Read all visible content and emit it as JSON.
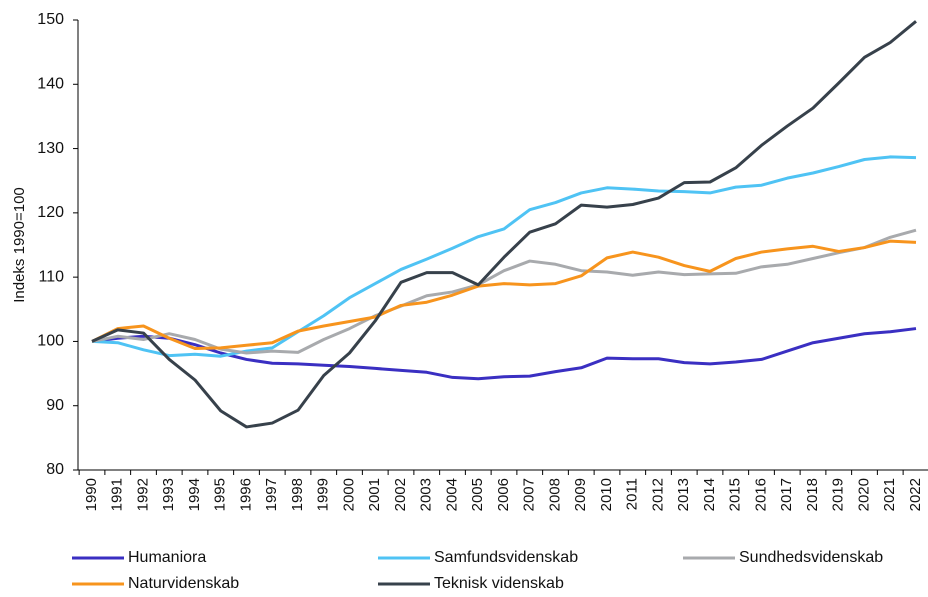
{
  "chart_data": {
    "type": "line",
    "y_label": "Indeks 1990=100",
    "categories": [
      "1990",
      "1991",
      "1992",
      "1993",
      "1994",
      "1995",
      "1996",
      "1997",
      "1998",
      "1999",
      "2000",
      "2001",
      "2002",
      "2003",
      "2004",
      "2005",
      "2006",
      "2007",
      "2008",
      "2009",
      "2010",
      "2011",
      "2012",
      "2013",
      "2014",
      "2015",
      "2016",
      "2017",
      "2018",
      "2019",
      "2020",
      "2021",
      "2022"
    ],
    "series": [
      {
        "name": "Humaniora",
        "color": "#3a2fc2",
        "values": [
          100,
          100.5,
          100.8,
          100.5,
          99.5,
          98.2,
          97.2,
          96.6,
          96.5,
          96.3,
          96.1,
          95.8,
          95.5,
          95.2,
          94.4,
          94.2,
          94.5,
          94.6,
          95.3,
          95.9,
          97.4,
          97.3,
          97.3,
          96.7,
          96.5,
          96.8,
          97.2,
          98.5,
          99.8,
          100.5,
          101.2,
          101.5,
          102
        ]
      },
      {
        "name": "Samfundsvidenskab",
        "color": "#4fc3f4",
        "values": [
          100,
          99.8,
          98.7,
          97.8,
          98.0,
          97.7,
          98.5,
          99,
          101.5,
          104,
          106.8,
          109,
          111.2,
          112.8,
          114.5,
          116.3,
          117.5,
          120.5,
          121.6,
          123.1,
          123.9,
          123.7,
          123.4,
          123.3,
          123.1,
          124,
          124.3,
          125.4,
          126.2,
          127.2,
          128.3,
          128.7,
          128.6
        ]
      },
      {
        "name": "Sundhedsvidenskab",
        "color": "#a8aaad",
        "values": [
          100,
          100.8,
          100.3,
          101.2,
          100.3,
          98.8,
          98.2,
          98.5,
          98.3,
          100.3,
          102,
          104,
          105.5,
          107.1,
          107.7,
          108.8,
          111,
          112.5,
          112,
          111,
          110.8,
          110.3,
          110.8,
          110.4,
          110.5,
          110.6,
          111.6,
          112,
          112.9,
          113.8,
          114.6,
          116.2,
          117.3
        ]
      },
      {
        "name": "Naturvidenskab",
        "color": "#f7941d",
        "values": [
          100,
          102,
          102.4,
          100.5,
          98.9,
          99,
          99.4,
          99.8,
          101.6,
          102.4,
          103.1,
          103.8,
          105.6,
          106.1,
          107.2,
          108.6,
          109,
          108.8,
          109,
          110.2,
          113,
          113.9,
          113.1,
          111.8,
          110.9,
          112.9,
          113.9,
          114.4,
          114.8,
          114,
          114.6,
          115.6,
          115.4
        ]
      },
      {
        "name": "Teknisk videnskab",
        "color": "#37414b",
        "values": [
          100,
          101.8,
          101.3,
          97.2,
          94,
          89.2,
          86.7,
          87.3,
          89.3,
          94.7,
          98.2,
          103.2,
          109.2,
          110.7,
          110.7,
          108.8,
          113.1,
          117,
          118.3,
          121.2,
          120.9,
          121.3,
          122.3,
          124.7,
          124.8,
          127,
          130.5,
          133.5,
          136.3,
          140.2,
          144.2,
          146.5,
          149.8
        ]
      }
    ],
    "ylim": [
      80,
      150
    ],
    "yticks": [
      80,
      90,
      100,
      110,
      120,
      130,
      140,
      150
    ],
    "grid": false
  }
}
